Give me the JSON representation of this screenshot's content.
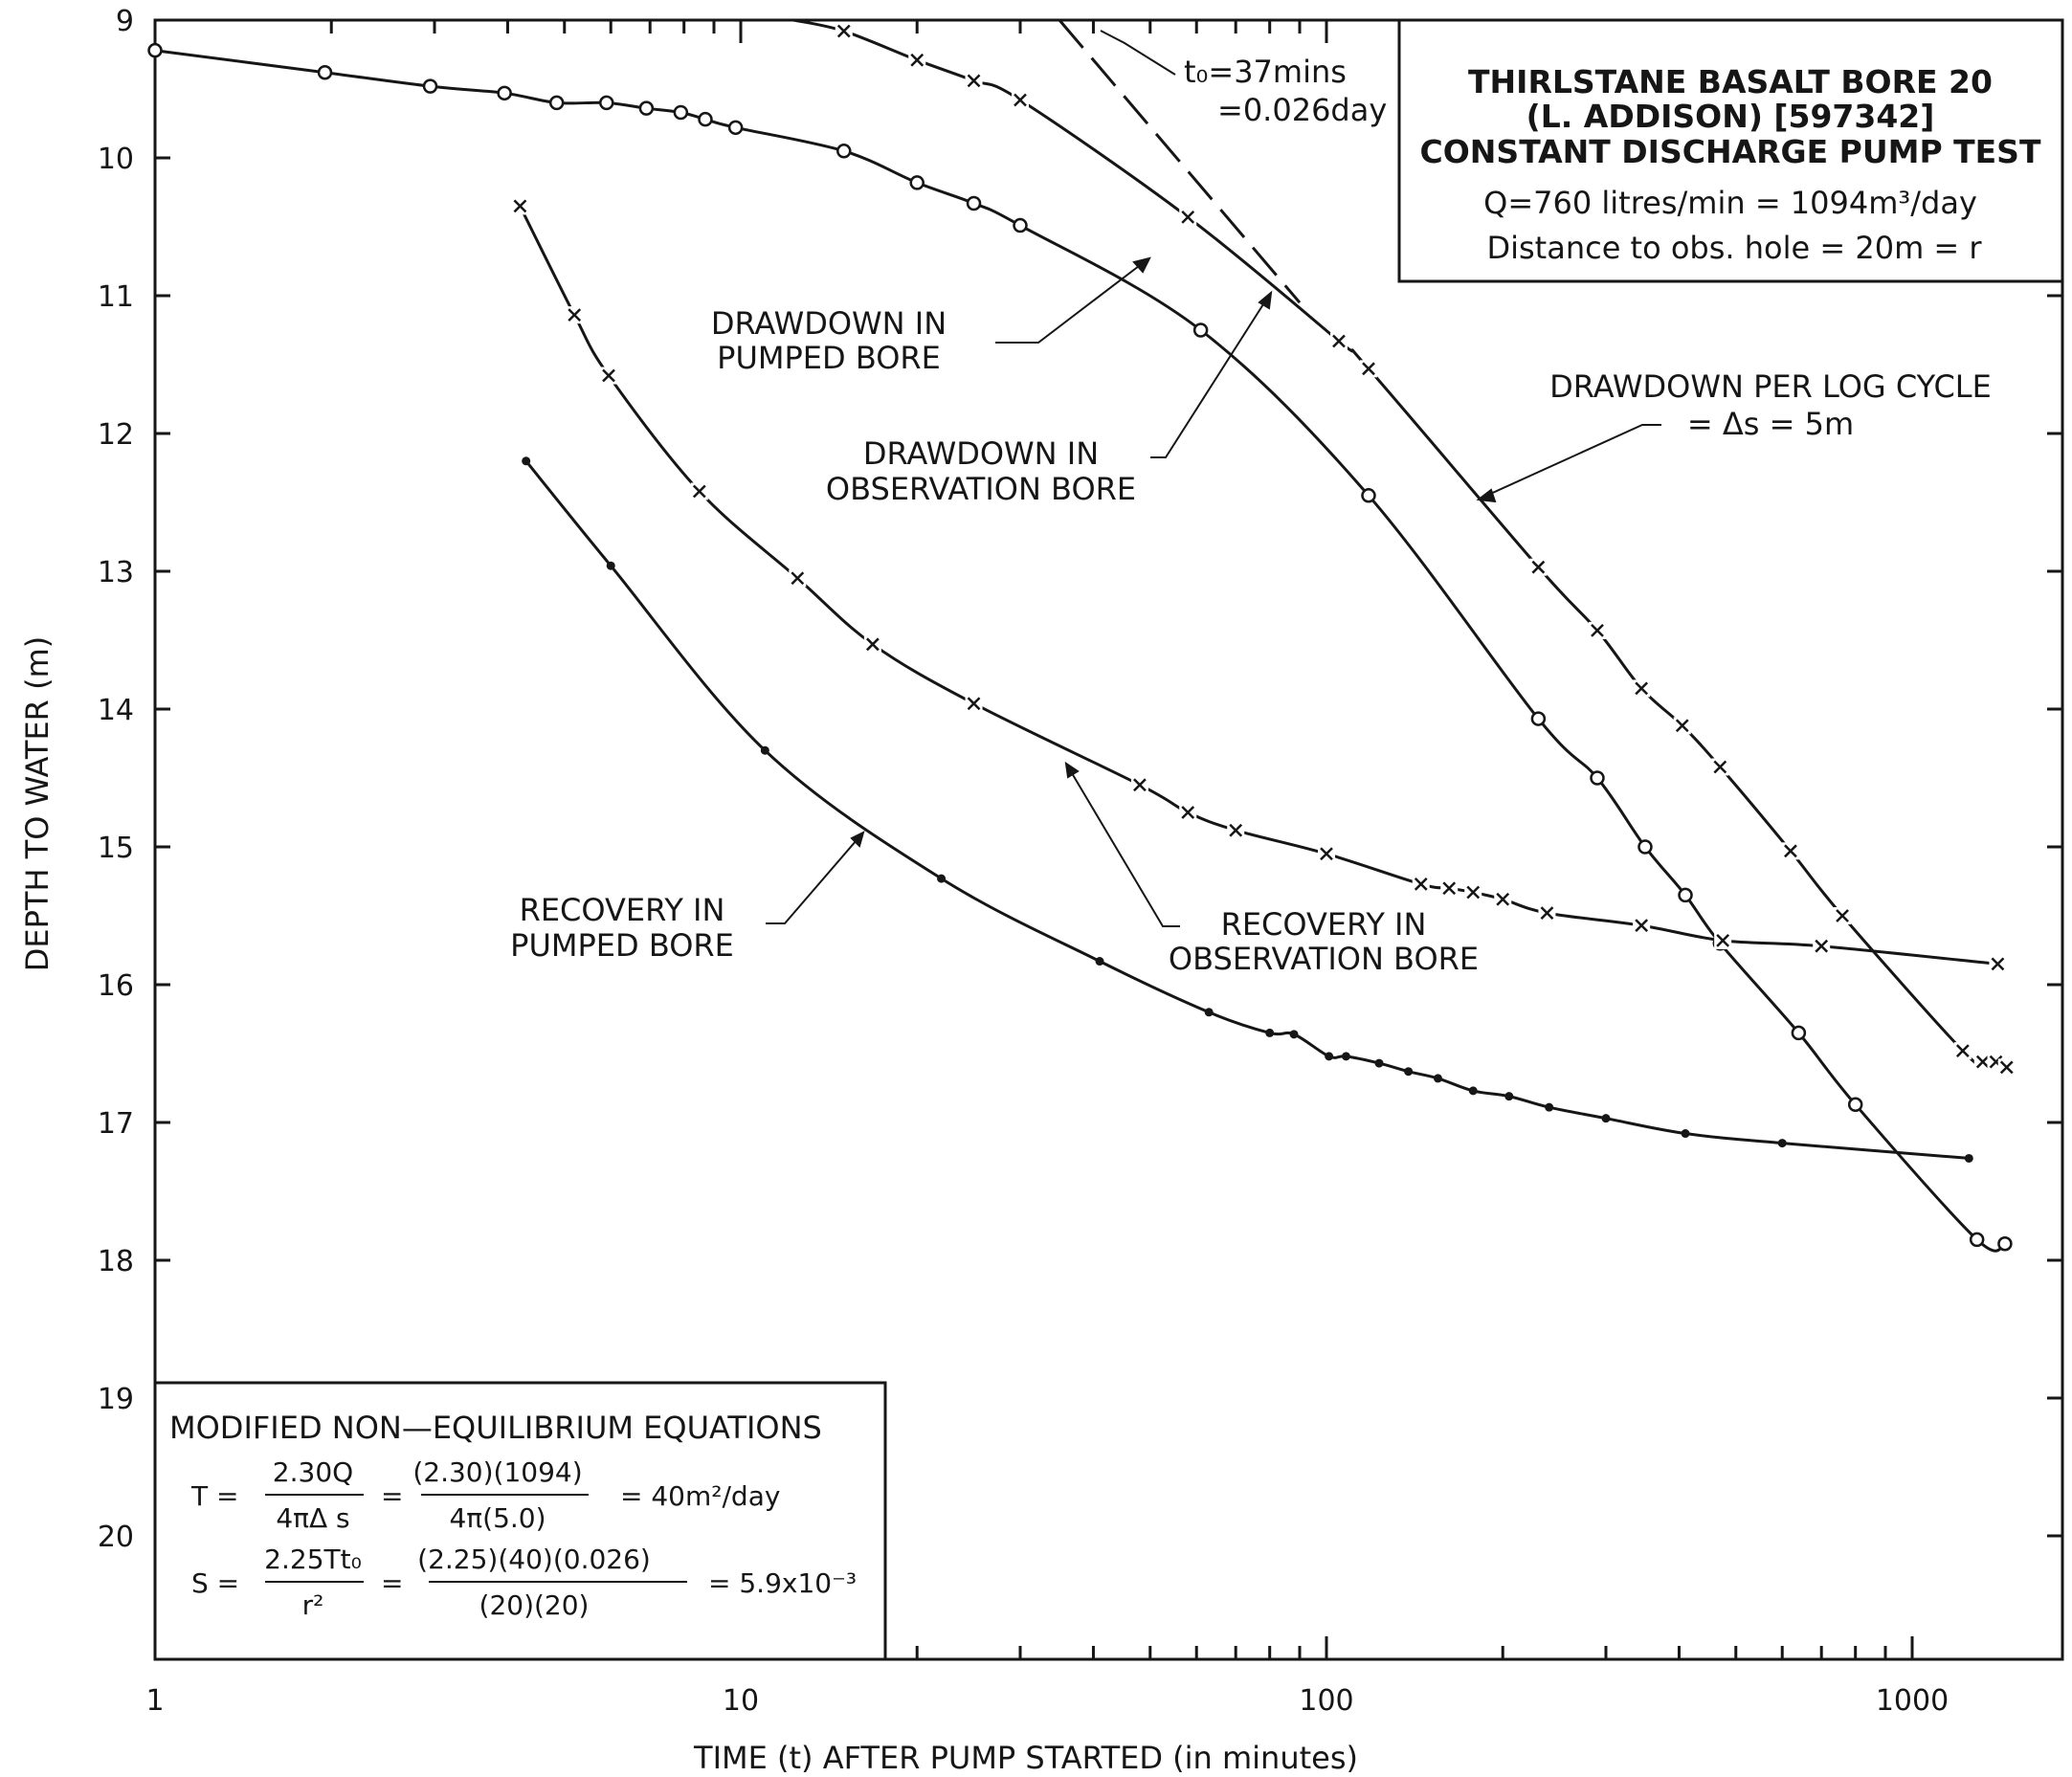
{
  "colors": {
    "ink": "#161616",
    "background": "#ffffff"
  },
  "chart_data": {
    "type": "scatter",
    "xscale": "log",
    "xlim": [
      1,
      2000
    ],
    "ylim": [
      9,
      21
    ],
    "y_inverted": true,
    "grid": false,
    "xlabel": "TIME (t) AFTER PUMP STARTED (in minutes)",
    "ylabel": "DEPTH TO WATER (m)",
    "xticks": [
      "1",
      "10",
      "100",
      "1000"
    ],
    "yticks": [
      "9",
      "10",
      "11",
      "12",
      "13",
      "14",
      "15",
      "16",
      "17",
      "18",
      "19",
      "20"
    ],
    "title_box": {
      "line1": "THIRLSTANE BASALT BORE 20",
      "line2": "(L. ADDISON) [597342]",
      "line3": "CONSTANT DISCHARGE PUMP TEST",
      "line4": "Q=760  litres/min  =  1094m³/day",
      "line5": "Distance  to    obs.  hole  =  20m  =  r"
    },
    "annotations": {
      "t0_a": "t₀=37mins",
      "t0_b": "=0.026day",
      "drawdown_pumped_a": "DRAWDOWN  IN",
      "drawdown_pumped_b": "PUMPED  BORE",
      "drawdown_obs_a": "DRAWDOWN  IN",
      "drawdown_obs_b": "OBSERVATION  BORE",
      "per_log_a": "DRAWDOWN  PER  LOG  CYCLE",
      "per_log_b": "=  Δs  =  5m",
      "recovery_pumped_a": "RECOVERY  IN",
      "recovery_pumped_b": "PUMPED  BORE",
      "recovery_obs_a": "RECOVERY  IN",
      "recovery_obs_b": "OBSERVATION  BORE"
    },
    "equations": {
      "heading": "MODIFIED  NON—EQUILIBRIUM  EQUATIONS",
      "t_lhs": "T  =",
      "t_num1": "2.30Q",
      "t_den1": "4πΔ s",
      "t_eq2": "=",
      "t_num2": "(2.30)(1094)",
      "t_den2": "4π(5.0)",
      "t_result": "=  40m²/day",
      "s_lhs": "S  =",
      "s_num1": "2.25Tt₀",
      "s_den1": "r²",
      "s_eq2": "=",
      "s_num2": "(2.25)(40)(0.026)",
      "s_den2": "(20)(20)",
      "s_result": "=  5.9x10⁻³"
    },
    "series": [
      {
        "key": "drawdown_pumped",
        "marker": "circle",
        "x": [
          1.0,
          1.95,
          2.95,
          3.95,
          4.85,
          5.9,
          6.9,
          7.9,
          8.7,
          9.8,
          15.0,
          20.0,
          25.0,
          30.0,
          61.0,
          118.0,
          230.0,
          290.0,
          350.0,
          410.0,
          470.0,
          640.0,
          800.0,
          1290.0,
          1440.0
        ],
        "y": [
          9.22,
          9.38,
          9.48,
          9.53,
          9.6,
          9.6,
          9.64,
          9.67,
          9.72,
          9.78,
          9.95,
          10.18,
          10.33,
          10.49,
          11.25,
          12.45,
          14.07,
          14.5,
          15.0,
          15.35,
          15.7,
          16.35,
          16.87,
          17.85,
          17.88
        ]
      },
      {
        "key": "drawdown_observation",
        "marker": "x",
        "x": [
          15.0,
          20.0,
          25.0,
          30.0,
          58.0,
          105.0,
          118.0,
          230.0,
          290.0,
          345.0,
          405.0,
          470.0,
          620.0,
          760.0,
          1220.0,
          1320.0,
          1390.0,
          1450.0
        ],
        "y": [
          9.08,
          9.29,
          9.44,
          9.58,
          10.43,
          11.33,
          11.53,
          12.97,
          13.43,
          13.85,
          14.12,
          14.42,
          15.03,
          15.5,
          16.48,
          16.56,
          16.56,
          16.6
        ]
      },
      {
        "key": "recovery_observation",
        "marker": "x",
        "x": [
          4.2,
          5.2,
          5.95,
          8.5,
          12.5,
          16.8,
          25.0,
          48.0,
          58.0,
          70.0,
          100.0,
          145.0,
          162.0,
          178.0,
          200.0,
          238.0,
          345.0,
          475.0,
          700.0,
          1400.0
        ],
        "y": [
          10.35,
          11.14,
          11.58,
          12.42,
          13.05,
          13.53,
          13.96,
          14.55,
          14.75,
          14.88,
          15.05,
          15.27,
          15.3,
          15.33,
          15.38,
          15.48,
          15.57,
          15.68,
          15.72,
          15.85
        ]
      },
      {
        "key": "recovery_pumped",
        "marker": "dot",
        "x": [
          4.3,
          6.0,
          11.0,
          22.0,
          41.0,
          63.0,
          80.0,
          88.0,
          101.0,
          108.0,
          123.0,
          138.0,
          155.0,
          178.0,
          205.0,
          240.0,
          300.0,
          410.0,
          600.0,
          1250.0
        ],
        "y": [
          12.2,
          12.96,
          14.3,
          15.23,
          15.83,
          16.2,
          16.35,
          16.36,
          16.52,
          16.52,
          16.57,
          16.63,
          16.68,
          16.77,
          16.81,
          16.89,
          16.97,
          17.08,
          17.15,
          17.26
        ]
      }
    ],
    "straight_line": {
      "key": "drawdown_per_log_cycle",
      "x": [
        35.0,
        90.0
      ],
      "y": [
        9.0,
        11.05
      ],
      "slope_per_log_cycle": 5.0,
      "t0_minutes": 37
    }
  }
}
